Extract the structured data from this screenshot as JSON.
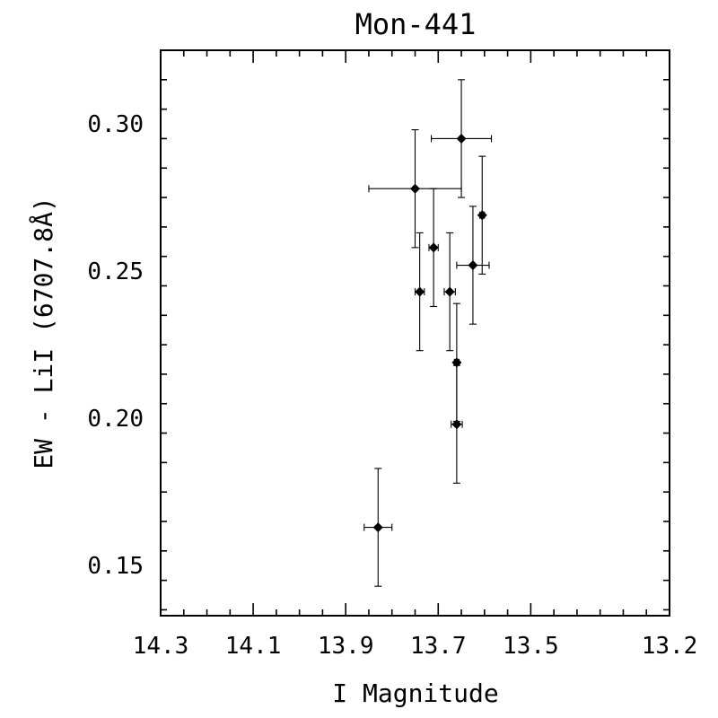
{
  "chart_data": {
    "type": "scatter",
    "title": "Mon-441",
    "xlabel": "I Magnitude",
    "ylabel": "EW - LiI (6707.8Å)",
    "xlim": [
      14.3,
      13.2
    ],
    "ylim": [
      0.133,
      0.325
    ],
    "x_reversed": true,
    "grid": false,
    "legend": "none",
    "x_ticks": [
      14.3,
      14.1,
      13.9,
      13.7,
      13.5,
      13.2
    ],
    "x_tick_labels": [
      "14.3",
      "14.1",
      "13.9",
      "13.7",
      "13.5",
      "13.2"
    ],
    "y_ticks": [
      0.15,
      0.2,
      0.25,
      0.3
    ],
    "y_tick_labels": [
      "0.15",
      "0.20",
      "0.25",
      "0.30"
    ],
    "series": [
      {
        "marker": "diamond",
        "color": "#000000",
        "points": [
          {
            "x": 13.83,
            "y": 0.163,
            "xerr": 0.03,
            "yerr": 0.02
          },
          {
            "x": 13.75,
            "y": 0.278,
            "xerr": 0.1,
            "yerr": 0.02
          },
          {
            "x": 13.74,
            "y": 0.243,
            "xerr": 0.01,
            "yerr": 0.02
          },
          {
            "x": 13.71,
            "y": 0.258,
            "xerr": 0.01,
            "yerr": 0.02
          },
          {
            "x": 13.675,
            "y": 0.243,
            "xerr": 0.012,
            "yerr": 0.02
          },
          {
            "x": 13.66,
            "y": 0.219,
            "xerr": 0.005,
            "yerr": 0.02
          },
          {
            "x": 13.66,
            "y": 0.198,
            "xerr": 0.012,
            "yerr": 0.02
          },
          {
            "x": 13.65,
            "y": 0.295,
            "xerr": 0.065,
            "yerr": 0.02
          },
          {
            "x": 13.625,
            "y": 0.252,
            "xerr": 0.035,
            "yerr": 0.02
          },
          {
            "x": 13.605,
            "y": 0.269,
            "xerr": 0.005,
            "yerr": 0.02
          }
        ]
      }
    ]
  }
}
